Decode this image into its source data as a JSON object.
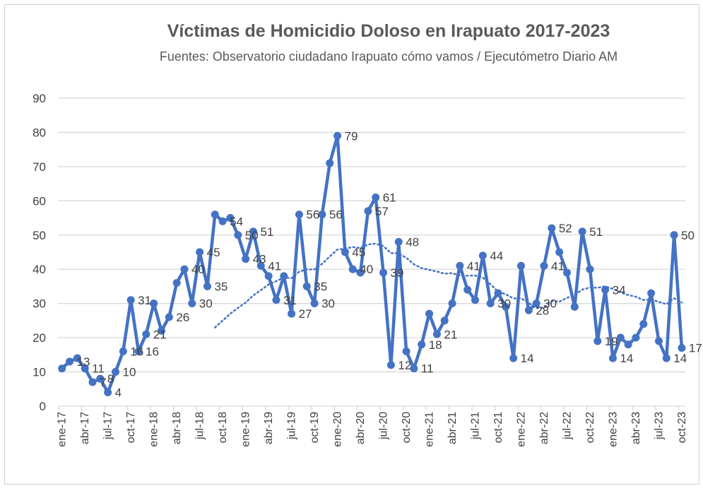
{
  "chart_data": {
    "type": "line",
    "title": "Víctimas de Homicidio Doloso en Irapuato 2017-2023",
    "subtitle": "Fuentes: Observatorio ciudadano Irapuato cómo vamos / Ejecutómetro Diario AM",
    "xlabel": "",
    "ylabel": "",
    "ylim": [
      0,
      90
    ],
    "yticks": [
      0,
      10,
      20,
      30,
      40,
      50,
      60,
      70,
      80,
      90
    ],
    "grid": true,
    "legend": "none",
    "x_tick_labels": [
      "ene-17",
      "abr-17",
      "jul-17",
      "oct-17",
      "ene-18",
      "abr-18",
      "jul-18",
      "oct-18",
      "ene-19",
      "abr-19",
      "jul-19",
      "oct-19",
      "ene-20",
      "abr-20",
      "jul-20",
      "oct-20",
      "ene-21",
      "abr-21",
      "jul-21",
      "oct-21",
      "ene-22",
      "abr-22",
      "jul-22",
      "oct-22",
      "ene-23",
      "abr-23",
      "jul-23",
      "oct-23"
    ],
    "x_tick_every": 3,
    "series": [
      {
        "name": "Víctimas",
        "color": "#4472C4",
        "values": [
          11,
          13,
          14,
          11,
          7,
          8,
          4,
          10,
          16,
          31,
          16,
          21,
          30,
          22,
          26,
          36,
          40,
          30,
          45,
          35,
          56,
          54,
          55,
          50,
          43,
          51,
          41,
          38,
          31,
          38,
          27,
          56,
          35,
          30,
          56,
          71,
          79,
          45,
          40,
          39,
          57,
          61,
          39,
          12,
          48,
          16,
          11,
          18,
          27,
          21,
          25,
          30,
          41,
          34,
          31,
          44,
          30,
          33,
          29,
          14,
          41,
          28,
          30,
          41,
          52,
          45,
          39,
          29,
          51,
          40,
          19,
          34,
          14,
          20,
          18,
          20,
          24,
          33,
          19,
          14,
          50,
          17
        ],
        "labeled_indices": [
          1,
          3,
          4,
          5,
          6,
          7,
          8,
          9,
          10,
          11,
          14,
          16,
          17,
          18,
          19,
          21,
          23,
          24,
          25,
          26,
          28,
          30,
          31,
          32,
          33,
          34,
          36,
          37,
          38,
          40,
          41,
          42,
          43,
          44,
          46,
          47,
          49,
          52,
          55,
          56,
          59,
          61,
          62,
          63,
          64,
          68,
          70,
          71,
          72,
          79,
          80,
          81
        ]
      }
    ],
    "trendline": {
      "type": "moving_average",
      "period": 21,
      "color": "#4472C4"
    }
  }
}
